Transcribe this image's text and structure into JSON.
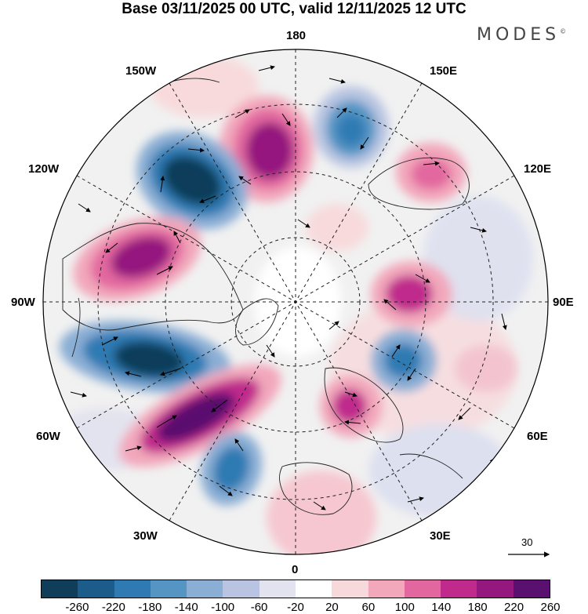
{
  "header": {
    "title": "Base 03/11/2025 00 UTC, valid 12/11/2025 12 UTC",
    "logo": "MODES",
    "logo_mark": "©"
  },
  "map": {
    "projection": "north polar stereographic",
    "longitude_labels": {
      "top": "180",
      "bottom": "0",
      "left": "90W",
      "right": "90E",
      "upper_left_1": "150W",
      "upper_left_2": "120W",
      "lower_left_1": "60W",
      "lower_left_2": "30W",
      "upper_right_1": "150E",
      "upper_right_2": "120E",
      "lower_right_1": "60E",
      "lower_right_2": "30E"
    },
    "reference_vector": "30",
    "anomaly_centers": [
      {
        "name": "positive-anomaly",
        "sign": "positive"
      },
      {
        "name": "negative-anomaly",
        "sign": "negative"
      }
    ]
  },
  "colorbar": {
    "colors": [
      "#0f3d5a",
      "#1b5c8a",
      "#2f7ab3",
      "#5495c4",
      "#8aaed4",
      "#b8c4e1",
      "#e3e3ef",
      "#ffffff",
      "#f8d9db",
      "#f2a7bb",
      "#e2679f",
      "#c02a8c",
      "#94187e",
      "#5a106e"
    ],
    "labels": [
      "-260",
      "-220",
      "-180",
      "-140",
      "-100",
      "-60",
      "-20",
      "20",
      "60",
      "100",
      "140",
      "180",
      "220",
      "260"
    ]
  }
}
